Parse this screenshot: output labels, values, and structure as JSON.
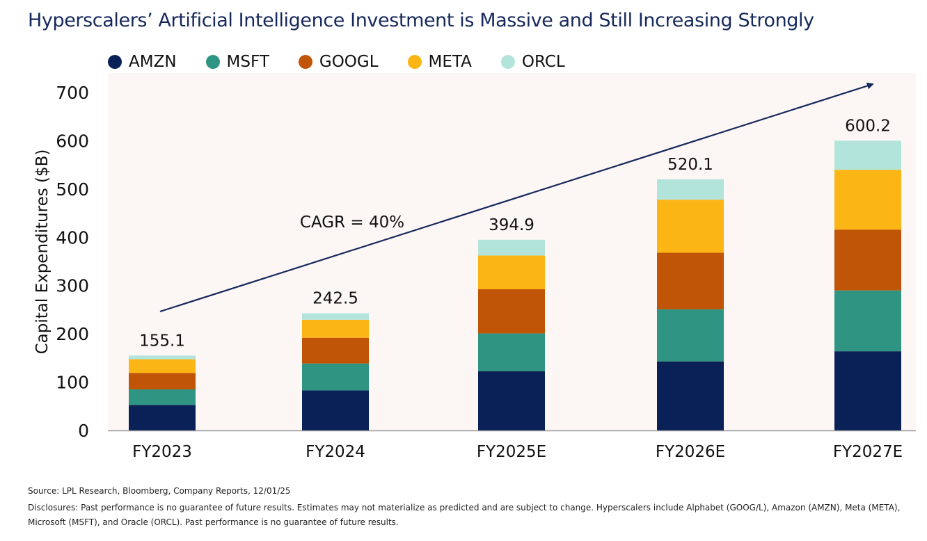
{
  "title": "Hyperscalers’ Artificial Intelligence Investment is Massive and Still Increasing Strongly",
  "chart_data": {
    "type": "bar",
    "stacked": true,
    "categories": [
      "FY2023",
      "FY2024",
      "FY2025E",
      "FY2026E",
      "FY2027E"
    ],
    "series": [
      {
        "name": "AMZN",
        "color": "#0a2157",
        "values": [
          52.7,
          83.0,
          122.5,
          143.0,
          164.0
        ]
      },
      {
        "name": "MSFT",
        "color": "#2f9582",
        "values": [
          32.3,
          55.7,
          78.5,
          108.0,
          126.0
        ]
      },
      {
        "name": "GOOGL",
        "color": "#c05407",
        "values": [
          34.0,
          53.3,
          91.4,
          117.0,
          126.0
        ]
      },
      {
        "name": "META",
        "color": "#fbb615",
        "values": [
          28.5,
          37.3,
          70.0,
          110.0,
          124.0
        ]
      },
      {
        "name": "ORCL",
        "color": "#b3e4dc",
        "values": [
          7.6,
          13.2,
          32.5,
          42.1,
          60.2
        ]
      }
    ],
    "totals": [
      "155.1",
      "242.5",
      "394.9",
      "520.1",
      "600.2"
    ],
    "ylabel": "Capital Expenditures ($B)",
    "ylim": [
      0,
      700
    ],
    "yticks": [
      0,
      100,
      200,
      300,
      400,
      500,
      600,
      700
    ],
    "annotation": "CAGR = 40%",
    "grid": false,
    "legend_position": "top"
  },
  "footer": {
    "source": "Source: LPL Research, Bloomberg, Company Reports, 12/01/25",
    "disclosure_line1": "Disclosures: Past performance is no guarantee of future results. Estimates may not materialize as predicted and are subject to change. Hyperscalers include Alphabet (GOOG/L), Amazon (AMZN), Meta (META),",
    "disclosure_line2": "Microsoft (MSFT), and Oracle (ORCL). Past performance is no guarantee of future results."
  }
}
